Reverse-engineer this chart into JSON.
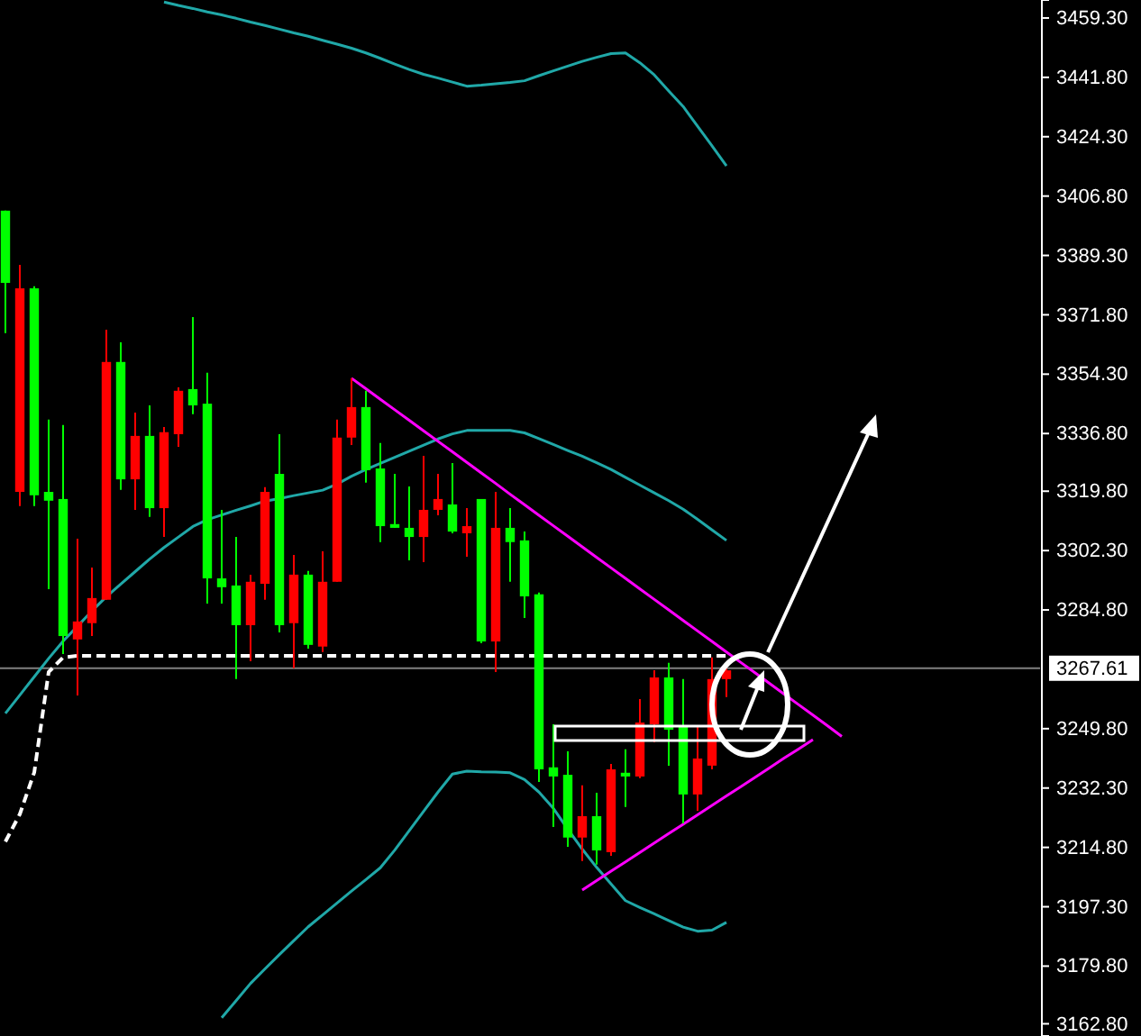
{
  "chart_data": {
    "type": "candlestick",
    "categories": [
      null,
      null,
      null,
      null,
      null,
      null,
      null,
      null,
      null,
      null,
      null,
      null,
      null,
      null,
      null,
      null,
      null,
      null,
      null,
      null,
      null,
      null,
      null,
      null,
      null,
      null,
      null,
      null,
      null,
      null,
      null,
      null,
      null,
      null,
      null,
      null,
      null,
      null,
      null,
      null,
      null,
      null,
      null,
      null,
      null,
      null,
      null,
      null,
      null,
      null,
      null,
      null,
      null,
      null,
      null,
      null,
      null,
      null,
      null
    ],
    "ohlc": [
      [
        3381.2,
        3402.5,
        3366.4,
        3402.5
      ],
      [
        3379.6,
        3386.5,
        3315.4,
        3319.6
      ],
      [
        3318.6,
        3380.2,
        3315.4,
        3379.6
      ],
      [
        3317.0,
        3340.9,
        3290.9,
        3319.6
      ],
      [
        3277.1,
        3339.3,
        3271.8,
        3317.5
      ],
      [
        3281.4,
        3305.8,
        3259.6,
        3276.1
      ],
      [
        3288.3,
        3297.3,
        3277.1,
        3280.9
      ],
      [
        3357.9,
        3367.4,
        3287.8,
        3287.8
      ],
      [
        3323.3,
        3363.7,
        3320.2,
        3357.9
      ],
      [
        3336.1,
        3343.0,
        3314.3,
        3323.3
      ],
      [
        3314.8,
        3345.1,
        3312.2,
        3336.1
      ],
      [
        3337.2,
        3338.7,
        3306.3,
        3314.8
      ],
      [
        3349.4,
        3350.4,
        3332.9,
        3336.6
      ],
      [
        3345.1,
        3371.1,
        3342.5,
        3349.9
      ],
      [
        3294.1,
        3354.7,
        3286.7,
        3345.6
      ],
      [
        3291.5,
        3314.3,
        3286.7,
        3294.1
      ],
      [
        3280.3,
        3306.3,
        3264.4,
        3292.0
      ],
      [
        3293.1,
        3295.2,
        3269.7,
        3280.3
      ],
      [
        3319.6,
        3321.0,
        3287.8,
        3292.5
      ],
      [
        3280.3,
        3336.6,
        3278.2,
        3324.9
      ],
      [
        3295.2,
        3301.0,
        3267.6,
        3280.9
      ],
      [
        3274.5,
        3296.3,
        3273.4,
        3295.2
      ],
      [
        3293.1,
        3302.1,
        3272.4,
        3274.0
      ],
      [
        3335.6,
        3340.9,
        3293.1,
        3293.1
      ],
      [
        3344.6,
        3353.1,
        3333.4,
        3335.6
      ],
      [
        3326.0,
        3349.4,
        3322.3,
        3344.6
      ],
      [
        3309.5,
        3334.0,
        3304.8,
        3326.5
      ],
      [
        3309.0,
        3324.9,
        3309.0,
        3310.1
      ],
      [
        3306.3,
        3321.2,
        3299.4,
        3309.0
      ],
      [
        3314.3,
        3330.2,
        3298.9,
        3306.3
      ],
      [
        3317.5,
        3324.9,
        3312.7,
        3314.3
      ],
      [
        3307.9,
        3328.1,
        3307.4,
        3315.9
      ],
      [
        3309.5,
        3314.8,
        3300.5,
        3307.4
      ],
      [
        3275.5,
        3317.5,
        3275.0,
        3317.5
      ],
      [
        3309.0,
        3319.6,
        3266.5,
        3275.5
      ],
      [
        3304.8,
        3314.8,
        3293.1,
        3309.0
      ],
      [
        3288.8,
        3307.9,
        3282.4,
        3305.3
      ],
      [
        3237.8,
        3289.9,
        3234.1,
        3289.4
      ],
      [
        3235.7,
        3251.1,
        3220.8,
        3238.4
      ],
      [
        3217.7,
        3243.1,
        3215.0,
        3236.2
      ],
      [
        3224.0,
        3233.1,
        3210.8,
        3217.7
      ],
      [
        3213.9,
        3230.9,
        3209.7,
        3224.0
      ],
      [
        3237.8,
        3239.4,
        3212.3,
        3213.4
      ],
      [
        3235.7,
        3243.7,
        3226.7,
        3236.8
      ],
      [
        3251.6,
        3258.5,
        3235.2,
        3235.7
      ],
      [
        3264.9,
        3267.0,
        3245.8,
        3251.1
      ],
      [
        3249.5,
        3269.2,
        3238.9,
        3264.9
      ],
      [
        3230.4,
        3264.4,
        3221.9,
        3250.6
      ],
      [
        3241.0,
        3250.6,
        3225.6,
        3230.4
      ],
      [
        3264.4,
        3270.8,
        3237.8,
        3238.9
      ],
      [
        3267.0,
        3269.2,
        3259.1,
        3264.4
      ],
      null,
      null,
      null,
      null,
      null,
      null,
      null,
      null
    ],
    "colors": [
      "#00ff00",
      "#ff0000",
      "#00ff00",
      "#00ff00",
      "#00ff00",
      "#ff0000",
      "#ff0000",
      "#ff0000",
      "#00ff00",
      "#ff0000",
      "#00ff00",
      "#ff0000",
      "#ff0000",
      "#00ff00",
      "#00ff00",
      "#00ff00",
      "#00ff00",
      "#ff0000",
      "#ff0000",
      "#00ff00",
      "#ff0000",
      "#00ff00",
      "#ff0000",
      "#ff0000",
      "#ff0000",
      "#00ff00",
      "#00ff00",
      "#00ff00",
      "#00ff00",
      "#ff0000",
      "#ff0000",
      "#00ff00",
      "#ff0000",
      "#00ff00",
      "#ff0000",
      "#00ff00",
      "#00ff00",
      "#00ff00",
      "#00ff00",
      "#00ff00",
      "#ff0000",
      "#00ff00",
      "#ff0000",
      "#00ff00",
      "#ff0000",
      "#ff0000",
      "#00ff00",
      "#00ff00",
      "#ff0000",
      "#ff0000",
      "#ff0000",
      null,
      null,
      null,
      null,
      null,
      null,
      null,
      null
    ],
    "series": [
      {
        "type": "line",
        "color": "#20a8a8",
        "values": [
          null,
          null,
          null,
          null,
          null,
          null,
          null,
          null,
          null,
          null,
          null,
          3464.0,
          3463.0,
          3462.1,
          3461.1,
          3460.2,
          3459.2,
          3458.1,
          3457.1,
          3456.0,
          3454.9,
          3453.9,
          3452.7,
          3451.6,
          3450.4,
          3449.0,
          3447.4,
          3445.7,
          3444.1,
          3442.7,
          3441.6,
          3440.4,
          3439.2,
          3439.5,
          3439.9,
          3440.3,
          3440.8,
          3442.3,
          3443.7,
          3445.1,
          3446.5,
          3447.7,
          3448.8,
          3449.0,
          3446.1,
          3442.5,
          3437.8,
          3433.2,
          3427.4,
          3421.6,
          3415.7,
          null,
          null,
          null,
          null,
          null,
          null,
          null,
          null
        ]
      },
      {
        "type": "line",
        "color": "#20a8a8",
        "values": [
          3254.3,
          3259.7,
          3265.1,
          3270.5,
          3275.6,
          3280.0,
          3284.5,
          3288.7,
          3292.4,
          3296.1,
          3299.8,
          3303.2,
          3306.3,
          3309.4,
          3311.4,
          3312.8,
          3314.2,
          3315.5,
          3316.9,
          3317.6,
          3318.5,
          3319.3,
          3320.1,
          3321.9,
          3324.2,
          3326.2,
          3328.0,
          3329.8,
          3331.6,
          3333.4,
          3335.2,
          3336.7,
          3337.7,
          3337.7,
          3337.7,
          3337.7,
          3337.0,
          3335.3,
          3333.6,
          3331.8,
          3330.1,
          3328.2,
          3326.2,
          3323.9,
          3321.6,
          3319.3,
          3317.0,
          3314.5,
          3311.5,
          3308.4,
          3305.3,
          null,
          null,
          null,
          null,
          null,
          null,
          null,
          null
        ]
      },
      {
        "type": "line",
        "color": "#20a8a8",
        "values": [
          null,
          null,
          null,
          null,
          null,
          null,
          null,
          null,
          null,
          null,
          null,
          null,
          null,
          null,
          null,
          3164.6,
          3169.6,
          3174.7,
          3179.0,
          3183.2,
          3187.3,
          3191.4,
          3194.9,
          3198.4,
          3201.9,
          3205.3,
          3208.8,
          3214.0,
          3219.7,
          3225.4,
          3231.1,
          3236.4,
          3237.3,
          3237.1,
          3237.0,
          3236.8,
          3234.8,
          3231.1,
          3226.3,
          3220.2,
          3214.3,
          3208.9,
          3204.0,
          3199.1,
          3197.1,
          3195.2,
          3193.2,
          3191.3,
          3190.1,
          3190.4,
          3192.7,
          null,
          null,
          null,
          null,
          null,
          null,
          null,
          null
        ]
      },
      {
        "type": "line",
        "color": "#ffffff",
        "line_style": "dashed",
        "values": [
          3216.5,
          3224.6,
          3236.9,
          3266.5,
          3270.8,
          3271.3,
          3271.3,
          3271.3,
          3271.3,
          3271.3,
          3271.3,
          3271.3,
          3271.3,
          3271.3,
          3271.3,
          3271.3,
          3271.3,
          3271.3,
          3271.3,
          3271.3,
          3271.3,
          3271.3,
          3271.3,
          3271.3,
          3271.3,
          3271.3,
          3271.3,
          3271.3,
          3271.3,
          3271.3,
          3271.3,
          3271.3,
          3271.3,
          3271.3,
          3271.3,
          3271.3,
          3271.3,
          3271.3,
          3271.3,
          3271.3,
          3271.3,
          3271.3,
          3271.3,
          3271.3,
          3271.3,
          3271.3,
          3271.3,
          3271.3,
          3271.3,
          3271.3,
          3271.3,
          null,
          null,
          null,
          null,
          null,
          null,
          null,
          null
        ]
      },
      {
        "type": "line",
        "color": "#ff00ff",
        "values": [
          null,
          null,
          null,
          null,
          null,
          null,
          null,
          null,
          null,
          null,
          null,
          null,
          null,
          null,
          null,
          null,
          null,
          null,
          null,
          null,
          null,
          null,
          null,
          null,
          3353.1,
          3350.0,
          3346.9,
          3343.8,
          3340.7,
          3337.6,
          3334.5,
          3331.4,
          3328.3,
          3325.2,
          3322.1,
          3318.9,
          3315.8,
          3312.7,
          3309.6,
          3306.5,
          3303.4,
          3300.3,
          3297.2,
          3294.1,
          3291.0,
          3287.9,
          3284.8,
          3281.7,
          3278.6,
          3275.5,
          3272.4,
          3269.3,
          3266.2,
          3263.1,
          3260.0,
          3256.9,
          3253.8,
          3250.7,
          3247.5
        ]
      },
      {
        "type": "line",
        "color": "#ff00ff",
        "values": [
          null,
          null,
          null,
          null,
          null,
          null,
          null,
          null,
          null,
          null,
          null,
          null,
          null,
          null,
          null,
          null,
          null,
          null,
          null,
          null,
          null,
          null,
          null,
          null,
          null,
          null,
          null,
          null,
          null,
          null,
          null,
          null,
          null,
          null,
          null,
          null,
          null,
          null,
          null,
          null,
          3202.2,
          3205.0,
          3207.8,
          3210.5,
          3213.3,
          3216.1,
          3218.9,
          3221.6,
          3224.4,
          3227.2,
          3230.0,
          3232.7,
          3235.5,
          3238.3,
          3241.1,
          3243.8,
          3246.6,
          null,
          null
        ]
      }
    ],
    "ylim": [
      3159.2,
      3464.6
    ],
    "yticks": [
      {
        "value": 3459.3,
        "label": "3459.30"
      },
      {
        "value": 3441.8,
        "label": "3441.80"
      },
      {
        "value": 3424.3,
        "label": "3424.30"
      },
      {
        "value": 3406.8,
        "label": "3406.80"
      },
      {
        "value": 3389.3,
        "label": "3389.30"
      },
      {
        "value": 3371.8,
        "label": "3371.80"
      },
      {
        "value": 3354.3,
        "label": "3354.30"
      },
      {
        "value": 3336.8,
        "label": "3336.80"
      },
      {
        "value": 3319.8,
        "label": "3319.80"
      },
      {
        "value": 3302.3,
        "label": "3302.30"
      },
      {
        "value": 3284.8,
        "label": "3284.80"
      },
      {
        "value": 3249.8,
        "label": "3249.80"
      },
      {
        "value": 3232.3,
        "label": "3232.30"
      },
      {
        "value": 3214.8,
        "label": "3214.80"
      },
      {
        "value": 3197.3,
        "label": "3197.30"
      },
      {
        "value": 3179.8,
        "label": "3179.80"
      },
      {
        "value": 3162.8,
        "label": "3162.80"
      }
    ],
    "ref_lines": [
      {
        "axis": "y",
        "value": 3267.61,
        "label": "3267.61",
        "color": "#808080"
      }
    ]
  }
}
